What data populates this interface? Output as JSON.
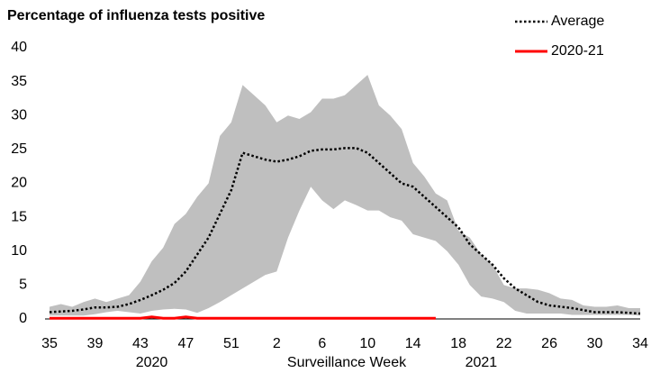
{
  "chart_data": {
    "type": "line",
    "title": "Percentage of influenza tests positive",
    "xlabel": "Surveillance Week",
    "year_labels": [
      "2020",
      "2021"
    ],
    "categories": [
      "35",
      null,
      null,
      null,
      "39",
      null,
      null,
      null,
      "43",
      null,
      null,
      null,
      "47",
      null,
      null,
      null,
      "51",
      null,
      null,
      null,
      "2",
      null,
      null,
      null,
      "6",
      null,
      null,
      null,
      "10",
      null,
      null,
      null,
      "14",
      null,
      null,
      null,
      "18",
      null,
      null,
      null,
      "22",
      null,
      null,
      null,
      "26",
      null,
      null,
      null,
      "30",
      null,
      null,
      null,
      "34"
    ],
    "band": {
      "color": "#bfbfbf",
      "upper": [
        1.8,
        2.2,
        1.8,
        2.5,
        3,
        2.5,
        3,
        3.5,
        5.5,
        8.5,
        10.5,
        14,
        15.5,
        18,
        20,
        27,
        29,
        34.5,
        33,
        31.5,
        29,
        30,
        29.5,
        30.5,
        32.5,
        32.5,
        33,
        34.5,
        36,
        31.5,
        30,
        28,
        23,
        21,
        18.5,
        17.5,
        13,
        12,
        9.5,
        8,
        5,
        4.5,
        4.5,
        4.3,
        3.8,
        3,
        2.8,
        2,
        1.8,
        1.8,
        2,
        1.6,
        1.6
      ],
      "lower": [
        0.5,
        0.5,
        0.5,
        0.5,
        0.7,
        1,
        1.2,
        1,
        0.8,
        1.2,
        1.4,
        1.5,
        1.4,
        0.9,
        1.6,
        2.5,
        3.5,
        4.5,
        5.5,
        6.5,
        7,
        12,
        16,
        19.5,
        17.5,
        16.2,
        17.5,
        16.8,
        16,
        16,
        15,
        14.5,
        12.5,
        12,
        11.5,
        10,
        8,
        5,
        3.3,
        3,
        2.5,
        1.2,
        0.8,
        0.8,
        0.8,
        0.8,
        0.6,
        0.6,
        0.6,
        0.6,
        0.6,
        0.6,
        0.5
      ]
    },
    "series": [
      {
        "name": "Average",
        "color": "#000000",
        "dash": "dotted",
        "values": [
          1.0,
          1.1,
          1.2,
          1.4,
          1.7,
          1.7,
          1.8,
          2.2,
          2.8,
          3.5,
          4.3,
          5.3,
          7.0,
          9.5,
          12,
          15.5,
          19,
          24.5,
          24,
          23.5,
          23.2,
          23.5,
          24,
          24.8,
          25,
          25,
          25.2,
          25.2,
          24.5,
          23,
          21.5,
          20,
          19.5,
          18,
          16.5,
          15,
          13.5,
          11,
          9.5,
          8,
          6,
          4.5,
          3.5,
          2.5,
          2,
          1.8,
          1.6,
          1.3,
          1.0,
          1.0,
          1.0,
          0.9,
          0.8
        ]
      },
      {
        "name": "2020-21",
        "color": "#ff0000",
        "dash": "solid",
        "values": [
          0.1,
          0.1,
          0.1,
          0.1,
          0.1,
          0.1,
          0.1,
          0.1,
          0.1,
          0.3,
          0.1,
          0.1,
          0.3,
          0.1,
          0.1,
          0.1,
          0.1,
          0.1,
          0.1,
          0.1,
          0.1,
          0.1,
          0.1,
          0.1,
          0.1,
          0.1,
          0.1,
          0.1,
          0.1,
          0.1,
          0.1,
          0.1,
          0.1,
          0.1,
          0.1,
          null,
          null,
          null,
          null,
          null,
          null,
          null,
          null,
          null,
          null,
          null,
          null,
          null,
          null,
          null,
          null,
          null,
          null
        ]
      }
    ],
    "ylim": [
      0,
      40
    ],
    "yticks": [
      0,
      5,
      10,
      15,
      20,
      25,
      30,
      35,
      40
    ],
    "legend": "top-right"
  }
}
